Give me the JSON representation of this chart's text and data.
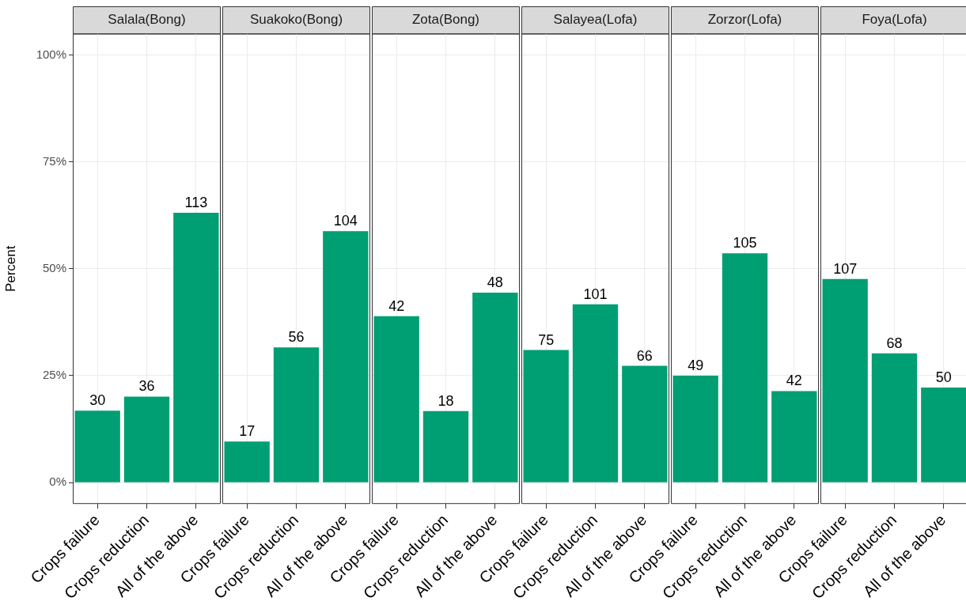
{
  "chart_data": [
    {
      "type": "bar",
      "title": "Salala(Bong)",
      "ylabel": "Percent",
      "categories": [
        "Crops failure",
        "Crops reduction",
        "All of the above"
      ],
      "values": [
        16.8,
        20.1,
        63.1
      ],
      "annotations": [
        {
          "text": "30",
          "x": "Crops failure",
          "y": 16.8
        },
        {
          "text": "36",
          "x": "Crops reduction",
          "y": 20.1
        },
        {
          "text": "113",
          "x": "All of the above",
          "y": 63.1
        }
      ],
      "color": "#009e73",
      "ylim": [
        -5,
        105
      ],
      "yticks": [
        {
          "value": 0,
          "label": "0%"
        },
        {
          "value": 25,
          "label": "25%"
        },
        {
          "value": 50,
          "label": "50%"
        },
        {
          "value": 75,
          "label": "75%"
        },
        {
          "value": 100,
          "label": "100%"
        }
      ],
      "grid": true
    },
    {
      "type": "bar",
      "title": "Suakoko(Bong)",
      "categories": [
        "Crops failure",
        "Crops reduction",
        "All of the above"
      ],
      "values": [
        9.6,
        31.6,
        58.8
      ],
      "annotations": [
        {
          "text": "17",
          "x": "Crops failure",
          "y": 9.6
        },
        {
          "text": "56",
          "x": "Crops reduction",
          "y": 31.6
        },
        {
          "text": "104",
          "x": "All of the above",
          "y": 58.8
        }
      ],
      "color": "#009e73",
      "ylim": [
        -5,
        105
      ],
      "yticks": [
        {
          "value": 0,
          "label": null
        },
        {
          "value": 25,
          "label": null
        },
        {
          "value": 50,
          "label": null
        },
        {
          "value": 75,
          "label": null
        },
        {
          "value": 100,
          "label": null
        }
      ],
      "grid": true,
      "tick_labels": "x"
    },
    {
      "type": "bar",
      "title": "Zota(Bong)",
      "categories": [
        "Crops failure",
        "Crops reduction",
        "All of the above"
      ],
      "values": [
        38.9,
        16.7,
        44.4
      ],
      "annotations": [
        {
          "text": "42",
          "x": "Crops failure",
          "y": 38.9
        },
        {
          "text": "18",
          "x": "Crops reduction",
          "y": 16.7
        },
        {
          "text": "48",
          "x": "All of the above",
          "y": 44.4
        }
      ],
      "color": "#009e73",
      "ylim": [
        -5,
        105
      ],
      "yticks": [
        {
          "value": 0,
          "label": null
        },
        {
          "value": 25,
          "label": null
        },
        {
          "value": 50,
          "label": null
        },
        {
          "value": 75,
          "label": null
        },
        {
          "value": 100,
          "label": null
        }
      ],
      "grid": true,
      "tick_labels": "x"
    },
    {
      "type": "bar",
      "title": "Salayea(Lofa)",
      "categories": [
        "Crops failure",
        "Crops reduction",
        "All of the above"
      ],
      "values": [
        31.0,
        41.7,
        27.3
      ],
      "annotations": [
        {
          "text": "75",
          "x": "Crops failure",
          "y": 31.0
        },
        {
          "text": "101",
          "x": "Crops reduction",
          "y": 41.7
        },
        {
          "text": "66",
          "x": "All of the above",
          "y": 27.3
        }
      ],
      "color": "#009e73",
      "ylim": [
        -5,
        105
      ],
      "yticks": [
        {
          "value": 0,
          "label": null
        },
        {
          "value": 25,
          "label": null
        },
        {
          "value": 50,
          "label": null
        },
        {
          "value": 75,
          "label": null
        },
        {
          "value": 100,
          "label": null
        }
      ],
      "grid": true,
      "tick_labels": "x"
    },
    {
      "type": "bar",
      "title": "Zorzor(Lofa)",
      "categories": [
        "Crops failure",
        "Crops reduction",
        "All of the above"
      ],
      "values": [
        25.0,
        53.6,
        21.4
      ],
      "annotations": [
        {
          "text": "49",
          "x": "Crops failure",
          "y": 25.0
        },
        {
          "text": "105",
          "x": "Crops reduction",
          "y": 53.6
        },
        {
          "text": "42",
          "x": "All of the above",
          "y": 21.4
        }
      ],
      "color": "#009e73",
      "ylim": [
        -5,
        105
      ],
      "yticks": [
        {
          "value": 0,
          "label": null
        },
        {
          "value": 25,
          "label": null
        },
        {
          "value": 50,
          "label": null
        },
        {
          "value": 75,
          "label": null
        },
        {
          "value": 100,
          "label": null
        }
      ],
      "grid": true,
      "tick_labels": "x"
    },
    {
      "type": "bar",
      "title": "Foya(Lofa)",
      "categories": [
        "Crops failure",
        "Crops reduction",
        "All of the above"
      ],
      "values": [
        47.6,
        30.2,
        22.2
      ],
      "annotations": [
        {
          "text": "107",
          "x": "Crops failure",
          "y": 47.6
        },
        {
          "text": "68",
          "x": "Crops reduction",
          "y": 30.2
        },
        {
          "text": "50",
          "x": "All of the above",
          "y": 22.2
        }
      ],
      "color": "#009e73",
      "ylim": [
        -5,
        105
      ],
      "yticks": [
        {
          "value": 0,
          "label": null
        },
        {
          "value": 25,
          "label": null
        },
        {
          "value": 50,
          "label": null
        },
        {
          "value": 75,
          "label": null
        },
        {
          "value": 100,
          "label": null
        }
      ],
      "grid": true,
      "tick_labels": "x"
    }
  ]
}
